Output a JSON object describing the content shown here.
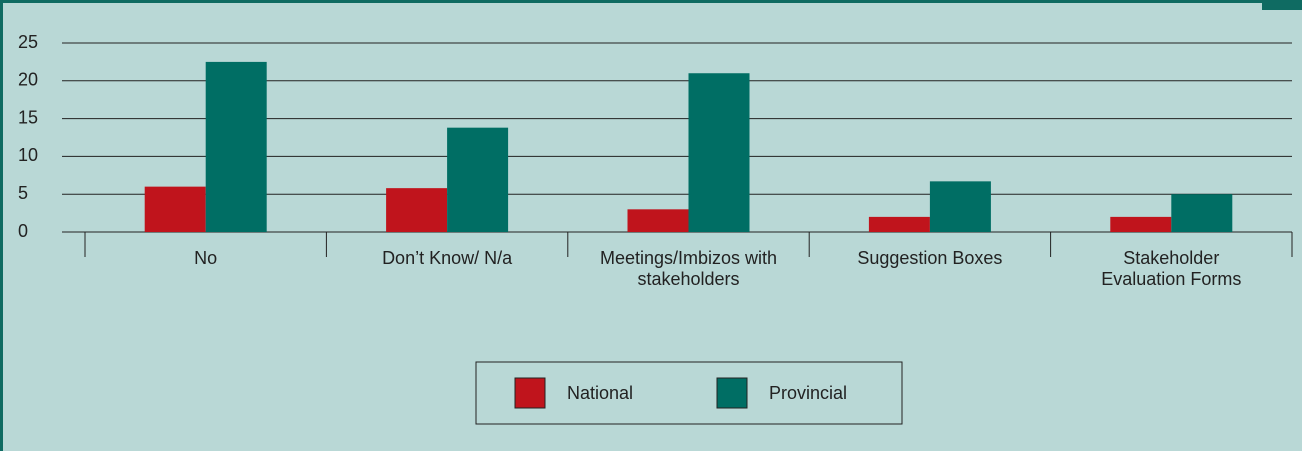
{
  "chart_data": {
    "type": "bar",
    "categories": [
      "No",
      "Don’t Know/ N/a",
      "Meetings/Imbizos with stakeholders",
      "Suggestion Boxes",
      "Stakeholder Evaluation Forms"
    ],
    "series": [
      {
        "name": "National",
        "color": "#c0141c",
        "values": [
          6,
          5.8,
          3,
          2,
          2
        ]
      },
      {
        "name": "Provincial",
        "color": "#006e64",
        "values": [
          22.5,
          13.8,
          21,
          6.7,
          5
        ]
      }
    ],
    "ylim": [
      0,
      25
    ],
    "yticks": [
      0,
      5,
      10,
      15,
      20,
      25
    ],
    "grid": true,
    "legend": "bottom"
  }
}
